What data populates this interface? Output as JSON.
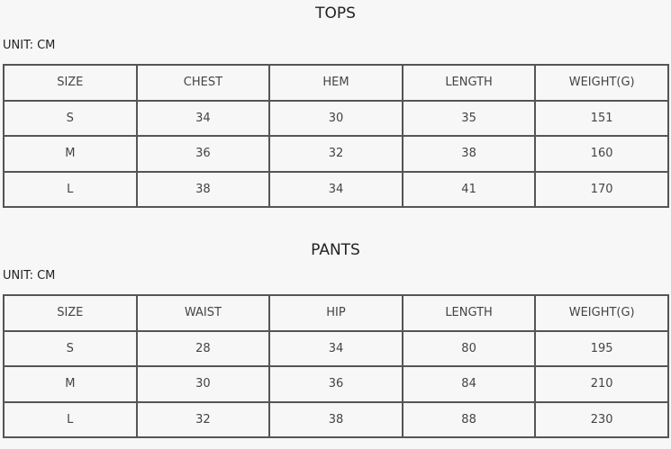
{
  "sections": [
    {
      "title": "TOPS",
      "unit": "UNIT:  CM",
      "headers": [
        "SIZE",
        "CHEST",
        "HEM",
        "LENGTH",
        "WEIGHT(G)"
      ],
      "rows": [
        [
          "S",
          "34",
          "30",
          "35",
          "151"
        ],
        [
          "M",
          "36",
          "32",
          "38",
          "160"
        ],
        [
          "L",
          "38",
          "34",
          "41",
          "170"
        ]
      ]
    },
    {
      "title": "PANTS",
      "unit": "UNIT:  CM",
      "headers": [
        "SIZE",
        "WAIST",
        "HIP",
        "LENGTH",
        "WEIGHT(G)"
      ],
      "rows": [
        [
          "S",
          "28",
          "34",
          "80",
          "195"
        ],
        [
          "M",
          "30",
          "36",
          "84",
          "210"
        ],
        [
          "L",
          "32",
          "38",
          "88",
          "230"
        ]
      ]
    }
  ]
}
